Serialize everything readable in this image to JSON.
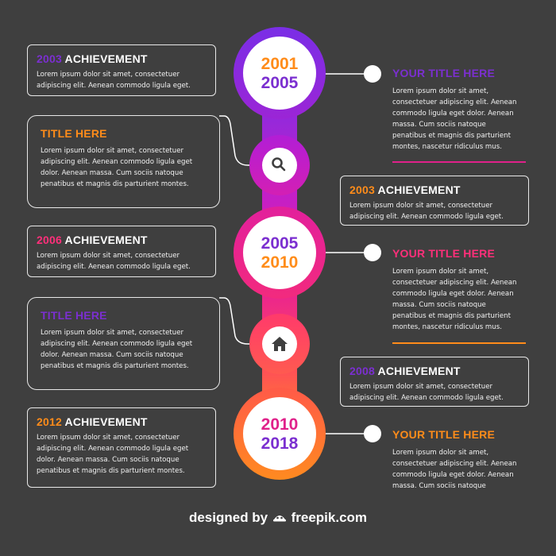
{
  "colors": {
    "background": "#3f3f3f",
    "purple": "#8a2be2",
    "violet": "#b61ee0",
    "magenta": "#e0218a",
    "pink": "#ff2f7a",
    "orange": "#ff8c1a",
    "line": "#ffffff"
  },
  "timeline": {
    "circles": [
      {
        "year_top": "2001",
        "year_bottom": "2005",
        "top_color": "#ff8c1a",
        "bottom_color": "#7b2fd0"
      },
      {
        "year_top": "2005",
        "year_bottom": "2010",
        "top_color": "#7b2fd0",
        "bottom_color": "#ff8c1a"
      },
      {
        "year_top": "2010",
        "year_bottom": "2018",
        "top_color": "#e0218a",
        "bottom_color": "#7b2fd0"
      }
    ],
    "icons": [
      "search-icon",
      "home-icon"
    ]
  },
  "left": [
    {
      "year": "2003",
      "word": "ACHIEVEMENT",
      "year_color": "#7b2fd0",
      "text": [
        "Lorem ipsum dolor sit amet, consectetuer",
        "adipiscing elit. Aenean commodo ligula eget."
      ]
    },
    {
      "title": "TITLE HERE",
      "title_color": "#ff8c1a",
      "text": [
        "Lorem ipsum dolor sit amet, consectetuer",
        "adipiscing elit. Aenean commodo ligula eget",
        "dolor. Aenean massa. Cum sociis natoque",
        "penatibus et magnis dis parturient montes."
      ]
    },
    {
      "year": "2006",
      "word": "ACHIEVEMENT",
      "year_color": "#ff2f7a",
      "text": [
        "Lorem ipsum dolor sit amet, consectetuer",
        "adipiscing elit. Aenean commodo ligula eget."
      ]
    },
    {
      "title": "TITLE HERE",
      "title_color": "#7b2fd0",
      "text": [
        "Lorem ipsum dolor sit amet, consectetuer",
        "adipiscing elit. Aenean commodo ligula eget",
        "dolor. Aenean massa. Cum sociis natoque",
        "penatibus et magnis dis parturient montes."
      ]
    },
    {
      "year": "2012",
      "word": "ACHIEVEMENT",
      "year_color": "#ff8c1a",
      "text": [
        "Lorem ipsum dolor sit amet, consectetuer",
        "adipiscing elit. Aenean commodo ligula eget",
        "dolor. Aenean massa. Cum sociis natoque",
        "penatibus et magnis dis parturient montes."
      ]
    }
  ],
  "right": [
    {
      "title": "YOUR TITLE HERE",
      "title_color": "#7b2fd0",
      "text": [
        "Lorem ipsum dolor sit amet,",
        "consectetuer adipiscing elit. Aenean",
        "commodo ligula eget dolor. Aenean",
        "massa. Cum sociis natoque",
        "penatibus et magnis dis parturient",
        "montes, nascetur ridiculus mus."
      ]
    },
    {
      "year": "2003",
      "word": "ACHIEVEMENT",
      "year_color": "#ff8c1a",
      "text": [
        "Lorem ipsum dolor sit amet, consectetuer",
        "adipiscing elit. Aenean commodo ligula eget."
      ]
    },
    {
      "title": "YOUR TITLE HERE",
      "title_color": "#ff2f7a",
      "text": [
        "Lorem ipsum dolor sit amet,",
        "consectetuer adipiscing elit. Aenean",
        "commodo ligula eget dolor. Aenean",
        "massa. Cum sociis natoque",
        "penatibus et magnis dis parturient",
        "montes, nascetur ridiculus mus."
      ]
    },
    {
      "year": "2008",
      "word": "ACHIEVEMENT",
      "year_color": "#7b2fd0",
      "text": [
        "Lorem ipsum dolor sit amet, consectetuer",
        "adipiscing elit. Aenean commodo ligula eget."
      ]
    },
    {
      "title": "YOUR TITLE HERE",
      "title_color": "#ff8c1a",
      "text": [
        "Lorem ipsum dolor sit amet,",
        "consectetuer adipiscing elit. Aenean",
        "commodo ligula eget dolor. Aenean",
        "massa. Cum sociis natoque"
      ]
    }
  ],
  "footer": {
    "designed": "designed by",
    "brand": "freepik.com"
  }
}
